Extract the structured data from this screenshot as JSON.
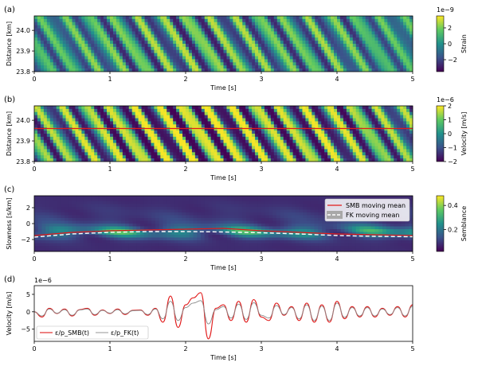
{
  "colors": {
    "viridis": [
      "#440154",
      "#3b528b",
      "#21918c",
      "#5ec962",
      "#fde725"
    ],
    "red": "#e11b1b",
    "white_dashed": "#ffffff",
    "gray": "#888888",
    "black": "#000000"
  },
  "chart_data": [
    {
      "id": "a",
      "type": "heatmap",
      "panel_label": "(a)",
      "xlabel": "Time [s]",
      "ylabel": "Distance [km]",
      "xlim": [
        0,
        5
      ],
      "ylim": [
        24.07,
        23.8
      ],
      "xticks": [
        "0",
        "1",
        "2",
        "3",
        "4",
        "5"
      ],
      "yticks": [
        "23.8",
        "23.9",
        "24.0"
      ],
      "colorbar": {
        "label": "Strain",
        "exponent": "1e−9",
        "ticks": [
          "2",
          "0",
          "−2"
        ],
        "range": [
          -3.5,
          3.5
        ]
      }
    },
    {
      "id": "b",
      "type": "heatmap",
      "panel_label": "(b)",
      "xlabel": "Time [s]",
      "ylabel": "Distance [km]",
      "xlim": [
        0,
        5
      ],
      "ylim": [
        24.07,
        23.8
      ],
      "xticks": [
        "0",
        "1",
        "2",
        "3",
        "4",
        "5"
      ],
      "yticks": [
        "23.8",
        "23.9",
        "24.0"
      ],
      "reference_line_y_km": 23.96,
      "colorbar": {
        "label": "Velocity [m/s]",
        "exponent": "1e−6",
        "ticks": [
          "2",
          "1",
          "0",
          "−1",
          "−2"
        ],
        "range": [
          -2,
          2
        ]
      }
    },
    {
      "id": "c",
      "type": "heatmap",
      "panel_label": "(c)",
      "xlabel": "Time [s]",
      "ylabel": "Slowness [s/km]",
      "xlim": [
        0,
        5
      ],
      "ylim": [
        -3.5,
        3.5
      ],
      "xticks": [
        "0",
        "1",
        "2",
        "3",
        "4",
        "5"
      ],
      "yticks": [
        "2",
        "0",
        "−2"
      ],
      "legend_position": "top-right",
      "series": [
        {
          "name": "SMB moving mean",
          "x": [
            0,
            0.5,
            1,
            1.5,
            2,
            2.5,
            3,
            3.5,
            4,
            4.5,
            5
          ],
          "y": [
            -1.5,
            -1.1,
            -0.9,
            -0.8,
            -0.7,
            -0.6,
            -0.9,
            -1.1,
            -1.3,
            -1.4,
            -1.5
          ]
        },
        {
          "name": "FK moving mean",
          "x": [
            0,
            0.5,
            1,
            1.5,
            2,
            2.5,
            3,
            3.5,
            4,
            4.5,
            5
          ],
          "y": [
            -1.7,
            -1.3,
            -1.1,
            -1.0,
            -1.0,
            -1.05,
            -1.15,
            -1.3,
            -1.5,
            -1.6,
            -1.65
          ]
        }
      ],
      "colorbar": {
        "label": "Semblance",
        "ticks": [
          "0.4",
          "0.2"
        ],
        "range": [
          0.02,
          0.48
        ]
      }
    },
    {
      "id": "d",
      "type": "line",
      "panel_label": "(d)",
      "xlabel": "Time [s]",
      "ylabel": "Velocity [m/s]",
      "exponent": "1e−6",
      "xlim": [
        0,
        5
      ],
      "ylim": [
        -8.5,
        7.5
      ],
      "xticks": [
        "0",
        "1",
        "2",
        "3",
        "4",
        "5"
      ],
      "yticks": [
        "5",
        "0",
        "−5"
      ],
      "legend_position": "bottom-left",
      "series": [
        {
          "name": "ε/p_SMB(t)",
          "x": [
            0,
            0.1,
            0.2,
            0.3,
            0.4,
            0.5,
            0.6,
            0.7,
            0.8,
            0.9,
            1.0,
            1.1,
            1.2,
            1.3,
            1.4,
            1.5,
            1.6,
            1.7,
            1.8,
            1.9,
            2.0,
            2.1,
            2.2,
            2.3,
            2.4,
            2.5,
            2.6,
            2.7,
            2.8,
            2.9,
            3.0,
            3.1,
            3.2,
            3.3,
            3.4,
            3.5,
            3.6,
            3.7,
            3.8,
            3.9,
            4.0,
            4.1,
            4.2,
            4.3,
            4.4,
            4.5,
            4.6,
            4.7,
            4.8,
            4.9,
            5.0
          ],
          "y": [
            0,
            -1.5,
            1.0,
            -0.5,
            0.8,
            -1.2,
            0.6,
            1.0,
            -1.0,
            0.5,
            -0.5,
            0.8,
            -0.8,
            0.4,
            0.5,
            -1.0,
            1.0,
            -3.0,
            4.5,
            -4.5,
            2.0,
            4.0,
            5.5,
            -7.8,
            1.0,
            2.0,
            -2.5,
            3.0,
            -3.0,
            3.5,
            -1.5,
            -2.5,
            2.5,
            -1.0,
            1.5,
            -2.5,
            2.5,
            -3.0,
            2.0,
            -3.0,
            3.0,
            -2.0,
            1.5,
            -1.5,
            1.5,
            -1.5,
            1.0,
            -1.0,
            1.5,
            -1.5,
            2.0
          ]
        },
        {
          "name": "ε/p_FK(t)",
          "x": [
            0,
            0.1,
            0.2,
            0.3,
            0.4,
            0.5,
            0.6,
            0.7,
            0.8,
            0.9,
            1.0,
            1.1,
            1.2,
            1.3,
            1.4,
            1.5,
            1.6,
            1.7,
            1.8,
            1.9,
            2.0,
            2.1,
            2.2,
            2.3,
            2.4,
            2.5,
            2.6,
            2.7,
            2.8,
            2.9,
            3.0,
            3.1,
            3.2,
            3.3,
            3.4,
            3.5,
            3.6,
            3.7,
            3.8,
            3.9,
            4.0,
            4.1,
            4.2,
            4.3,
            4.4,
            4.5,
            4.6,
            4.7,
            4.8,
            4.9,
            5.0
          ],
          "y": [
            0,
            -1.2,
            0.8,
            -0.4,
            0.6,
            -1.0,
            0.5,
            0.8,
            -0.8,
            0.4,
            -0.4,
            0.6,
            -0.6,
            0.3,
            0.4,
            -0.8,
            0.8,
            -2.0,
            3.0,
            -2.5,
            1.2,
            2.5,
            3.2,
            -3.5,
            0.6,
            1.5,
            -1.8,
            2.2,
            -2.2,
            2.6,
            -1.0,
            -1.8,
            1.8,
            -0.8,
            1.2,
            -2.0,
            2.0,
            -2.5,
            1.6,
            -2.5,
            2.5,
            -1.6,
            1.2,
            -1.2,
            1.2,
            -1.2,
            0.8,
            -0.8,
            1.2,
            -1.2,
            1.6
          ]
        }
      ]
    }
  ]
}
